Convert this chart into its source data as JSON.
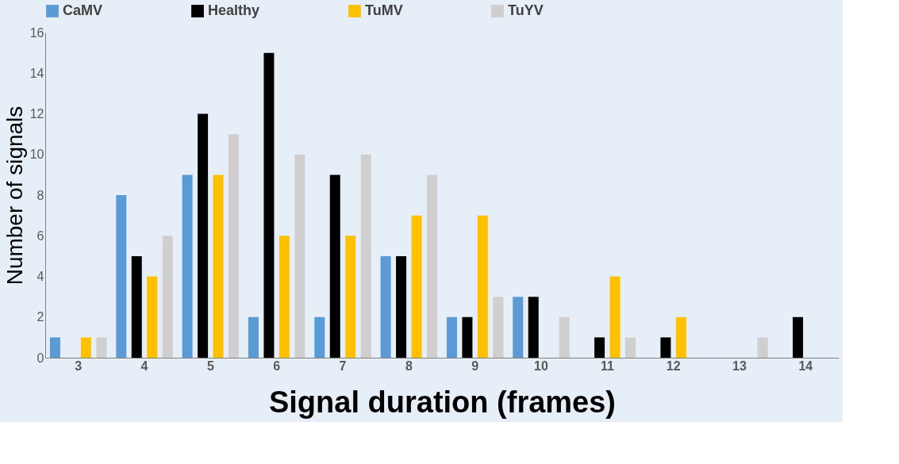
{
  "chart_data": {
    "type": "bar",
    "xlabel": "Signal duration (frames)",
    "ylabel": "Number of signals",
    "categories": [
      "3",
      "4",
      "5",
      "6",
      "7",
      "8",
      "9",
      "10",
      "11",
      "12",
      "13",
      "14"
    ],
    "series": [
      {
        "name": "CaMV",
        "color": "#5b9bd5",
        "values": [
          1,
          8,
          9,
          2,
          2,
          5,
          2,
          3,
          0,
          0,
          0,
          0
        ]
      },
      {
        "name": "Healthy",
        "color": "#000000",
        "values": [
          0,
          5,
          12,
          15,
          9,
          5,
          2,
          3,
          1,
          1,
          0,
          2
        ]
      },
      {
        "name": "TuMV",
        "color": "#ffc000",
        "values": [
          1,
          4,
          9,
          6,
          6,
          7,
          7,
          0,
          4,
          2,
          0,
          0
        ]
      },
      {
        "name": "TuYV",
        "color": "#d0cece",
        "values": [
          1,
          6,
          11,
          10,
          10,
          9,
          3,
          2,
          1,
          0,
          1,
          0
        ]
      }
    ],
    "ylim": [
      0,
      16
    ],
    "yticks": [
      0,
      2,
      4,
      6,
      8,
      10,
      12,
      14,
      16
    ],
    "grid": false,
    "legend": "top"
  }
}
